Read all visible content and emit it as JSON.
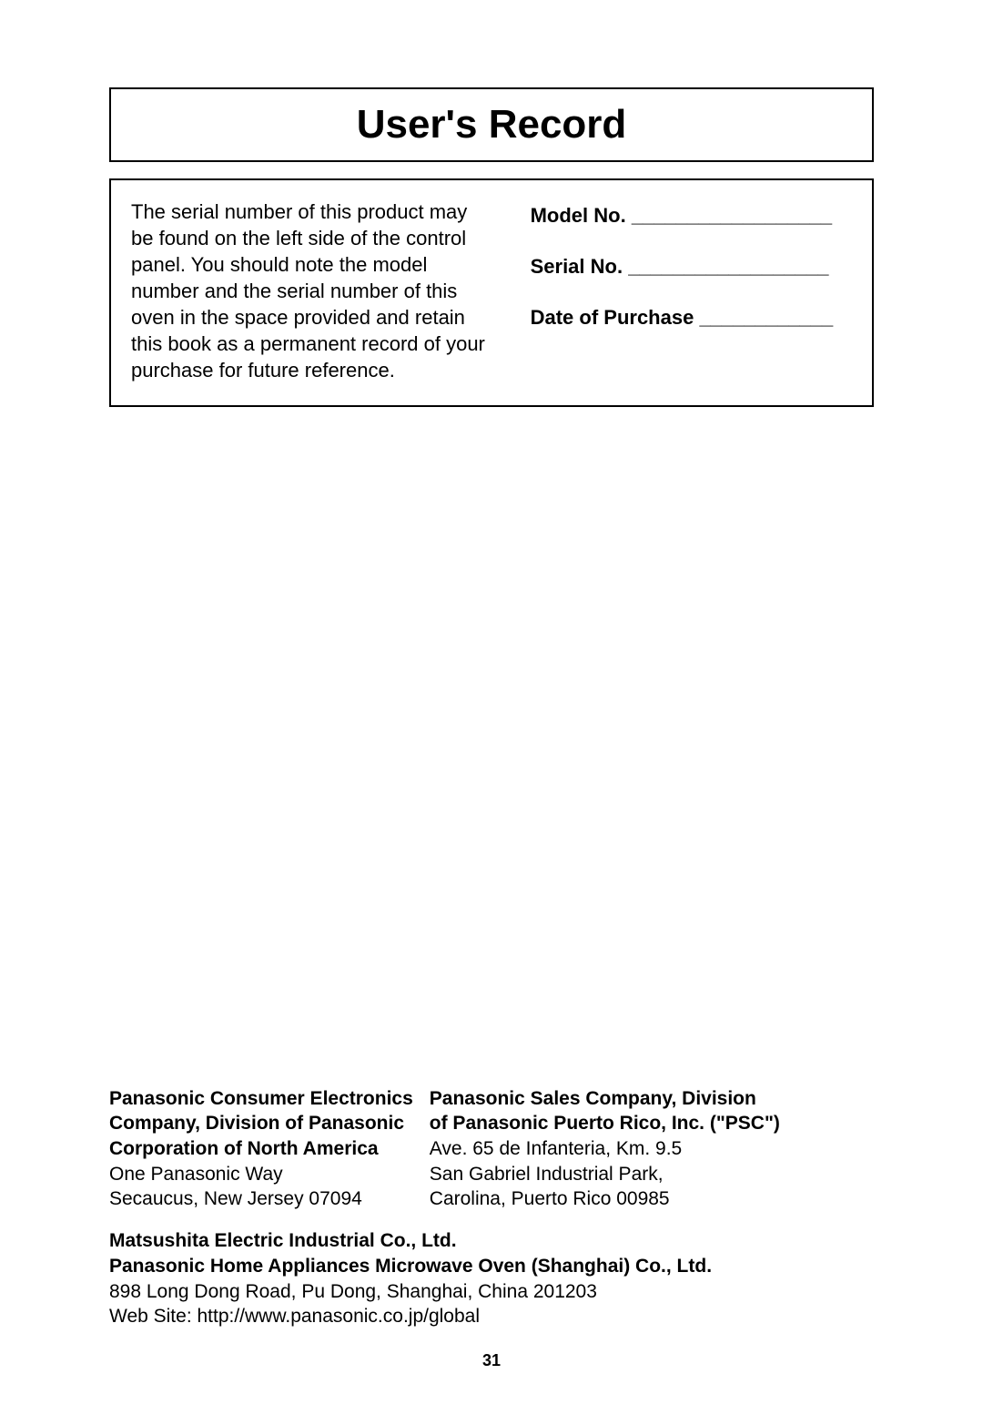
{
  "title": "User's Record",
  "record": {
    "instructions": "The serial number of this product may be found on the left side of the control panel. You should note the model number and the serial number of this oven in the space provided and retain this book as a permanent record of your purchase for future reference.",
    "fields": {
      "model_label": "Model No.",
      "model_line": " __________________",
      "serial_label": "Serial No.",
      "serial_line": "  __________________",
      "date_label": "Date of Purchase",
      "date_line": " ____________"
    }
  },
  "footer": {
    "col1": {
      "name_line1": "Panasonic Consumer Electronics",
      "name_line2": "Company, Division of Panasonic",
      "name_line3": "Corporation of North America",
      "addr_line1": "One Panasonic Way",
      "addr_line2": "Secaucus, New Jersey 07094"
    },
    "col2": {
      "name_line1": "Panasonic Sales Company, Division",
      "name_line2": "of Panasonic Puerto Rico, Inc. (\"PSC\")",
      "addr_line1": "Ave. 65 de Infanteria, Km. 9.5",
      "addr_line2": "San Gabriel Industrial Park,",
      "addr_line3": "Carolina, Puerto Rico 00985"
    },
    "bottom": {
      "name_line1": "Matsushita Electric Industrial Co., Ltd.",
      "name_line2": "Panasonic Home Appliances Microwave Oven (Shanghai) Co., Ltd.",
      "addr_line1": "898 Long Dong Road, Pu Dong, Shanghai, China 201203",
      "website": "Web Site: http://www.panasonic.co.jp/global"
    }
  },
  "page_number": "31"
}
